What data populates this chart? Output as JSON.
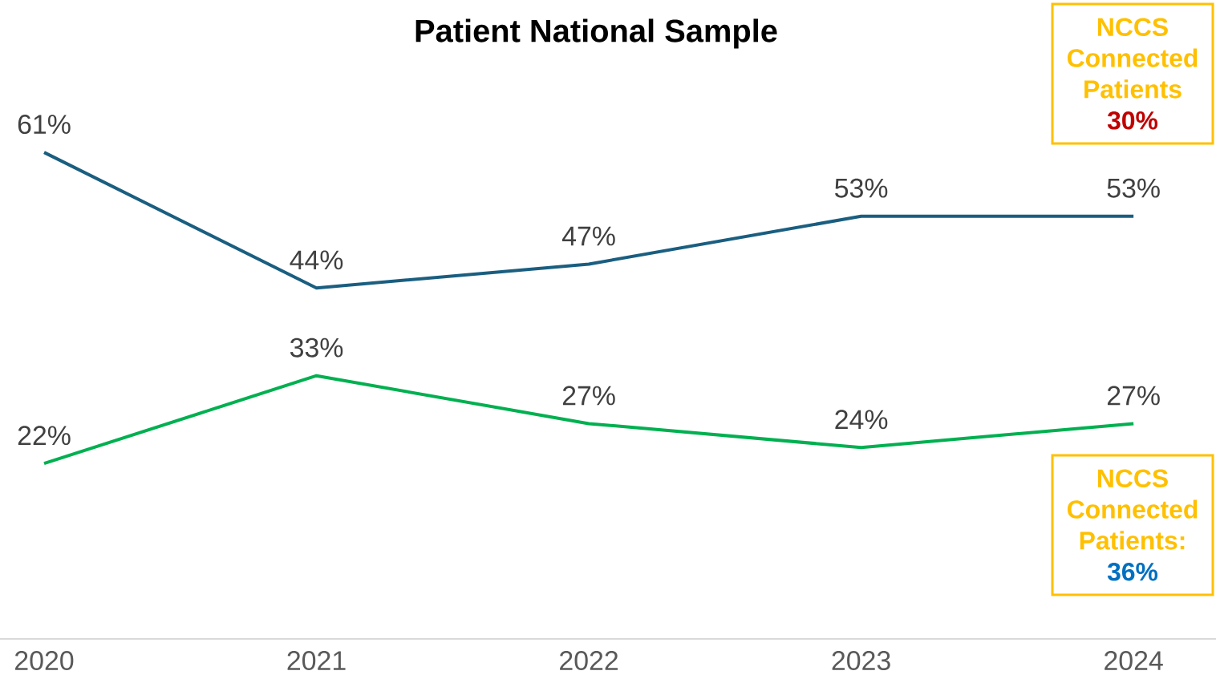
{
  "chart_data": {
    "type": "line",
    "title": "Patient National Sample",
    "categories": [
      "2020",
      "2021",
      "2022",
      "2023",
      "2024"
    ],
    "series": [
      {
        "color": "#1a5e80",
        "values": [
          61,
          44,
          47,
          53,
          53
        ],
        "value_labels": [
          "61%",
          "44%",
          "47%",
          "53%",
          "53%"
        ]
      },
      {
        "color": "#00b050",
        "values": [
          22,
          33,
          27,
          24,
          27
        ],
        "value_labels": [
          "22%",
          "33%",
          "27%",
          "24%",
          "27%"
        ]
      }
    ],
    "tick_labels": "x",
    "annotations": [
      "NCCS Connected Patients",
      "30%",
      "NCCS Connected Patients:",
      "36%"
    ]
  }
}
